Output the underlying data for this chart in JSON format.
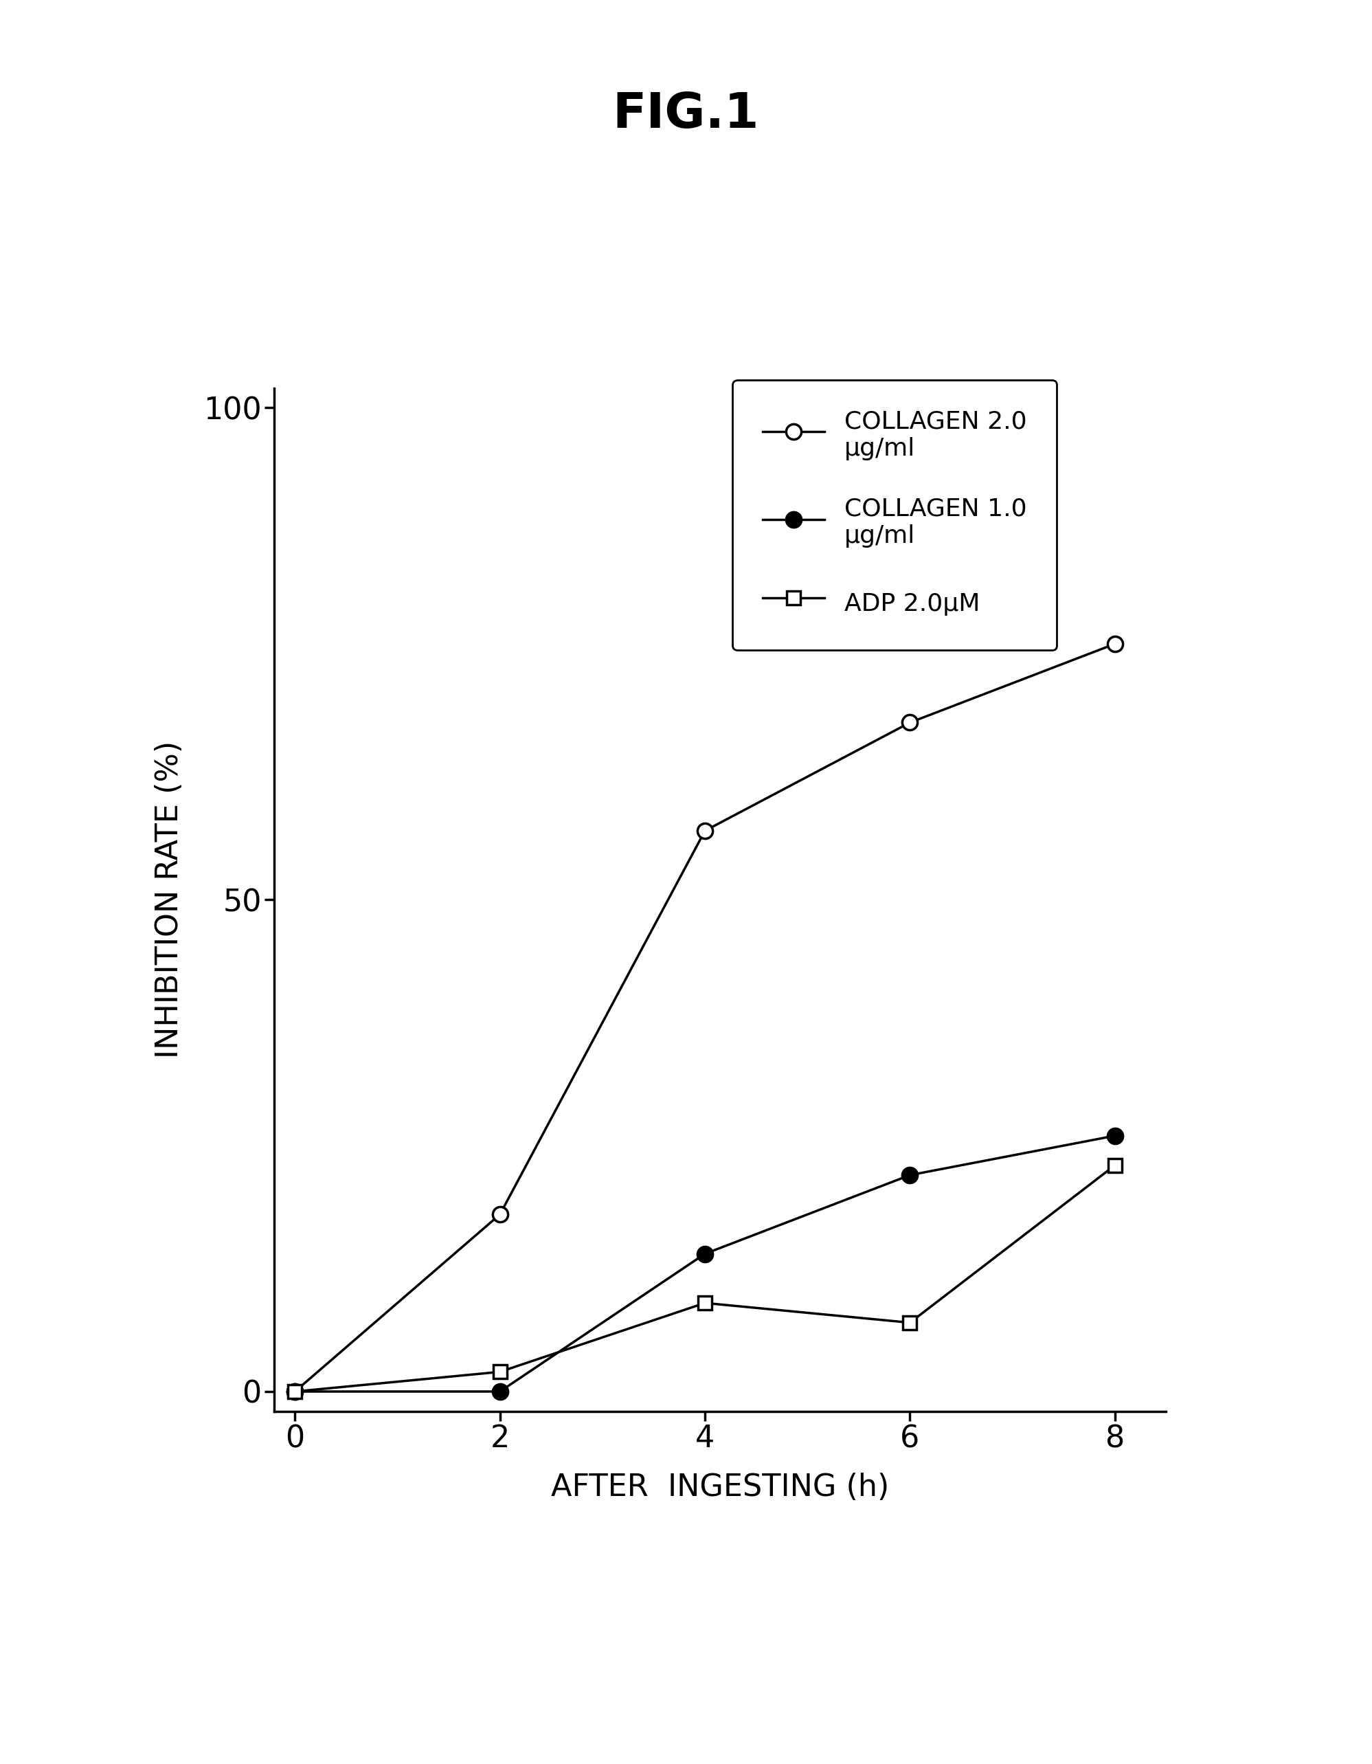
{
  "title": "FIG.1",
  "xlabel": "AFTER  INGESTING (h)",
  "ylabel": "INHIBITION RATE (%)",
  "x_values": [
    0,
    2,
    4,
    6,
    8
  ],
  "collagen_2_0": [
    0,
    18,
    57,
    68,
    76
  ],
  "collagen_1_0": [
    0,
    0,
    14,
    22,
    26
  ],
  "adp_2_0": [
    0,
    2,
    9,
    7,
    23
  ],
  "ylim": [
    0,
    100
  ],
  "xlim": [
    -0.2,
    8.5
  ],
  "yticks": [
    0,
    50,
    100
  ],
  "xticks": [
    0,
    2,
    4,
    6,
    8
  ],
  "legend_labels": [
    "COLLAGEN 2.0\nμg/ml",
    "COLLAGEN 1.0\nμg/ml",
    "ADP 2.0μM"
  ],
  "bg_color": "#ffffff",
  "line_color": "#000000",
  "title_fontsize": 52,
  "tick_fontsize": 32,
  "label_fontsize": 32,
  "legend_fontsize": 26
}
